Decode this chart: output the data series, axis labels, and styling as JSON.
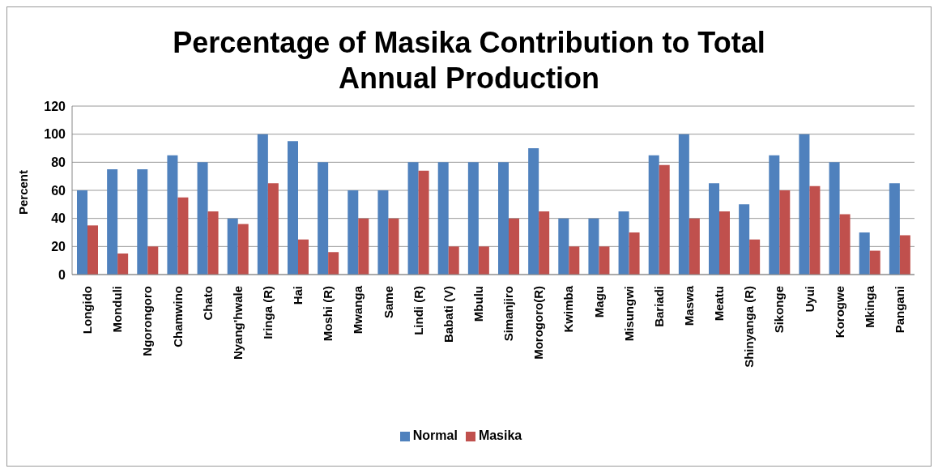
{
  "chart_data": {
    "type": "bar",
    "title": "Percentage of Masika Contribution to Total Annual Production",
    "ylabel": "Percent",
    "categories": [
      "Longido",
      "Monduli",
      "Ngorongoro",
      "Chamwino",
      "Chato",
      "Nyang'hwale",
      "Iringa (R)",
      "Hai",
      "Moshi (R)",
      "Mwanga",
      "Same",
      "Lindi (R)",
      "Babati (V)",
      "Mbulu",
      "Simanjiro",
      "Morogoro(R)",
      "Kwimba",
      "Magu",
      "Misungwi",
      "Bariadi",
      "Maswa",
      "Meatu",
      "Shinyanga (R)",
      "Sikonge",
      "Uyui",
      "Korogwe",
      "Mkinga",
      "Pangani"
    ],
    "series": [
      {
        "name": "Normal",
        "color": "#4f81bd",
        "values": [
          60,
          75,
          75,
          85,
          80,
          40,
          100,
          95,
          80,
          60,
          60,
          80,
          80,
          80,
          80,
          90,
          40,
          40,
          45,
          85,
          100,
          65,
          50,
          85,
          100,
          80,
          30,
          65
        ]
      },
      {
        "name": "Masika",
        "color": "#c0504d",
        "values": [
          35,
          15,
          20,
          55,
          45,
          36,
          65,
          25,
          16,
          40,
          40,
          74,
          20,
          20,
          40,
          45,
          20,
          20,
          30,
          78,
          40,
          45,
          25,
          60,
          63,
          43,
          17,
          28
        ]
      }
    ],
    "ylim": [
      0,
      120
    ],
    "yticks": [
      0,
      20,
      40,
      60,
      80,
      100,
      120
    ],
    "grid": "y",
    "legend": "bottom"
  }
}
